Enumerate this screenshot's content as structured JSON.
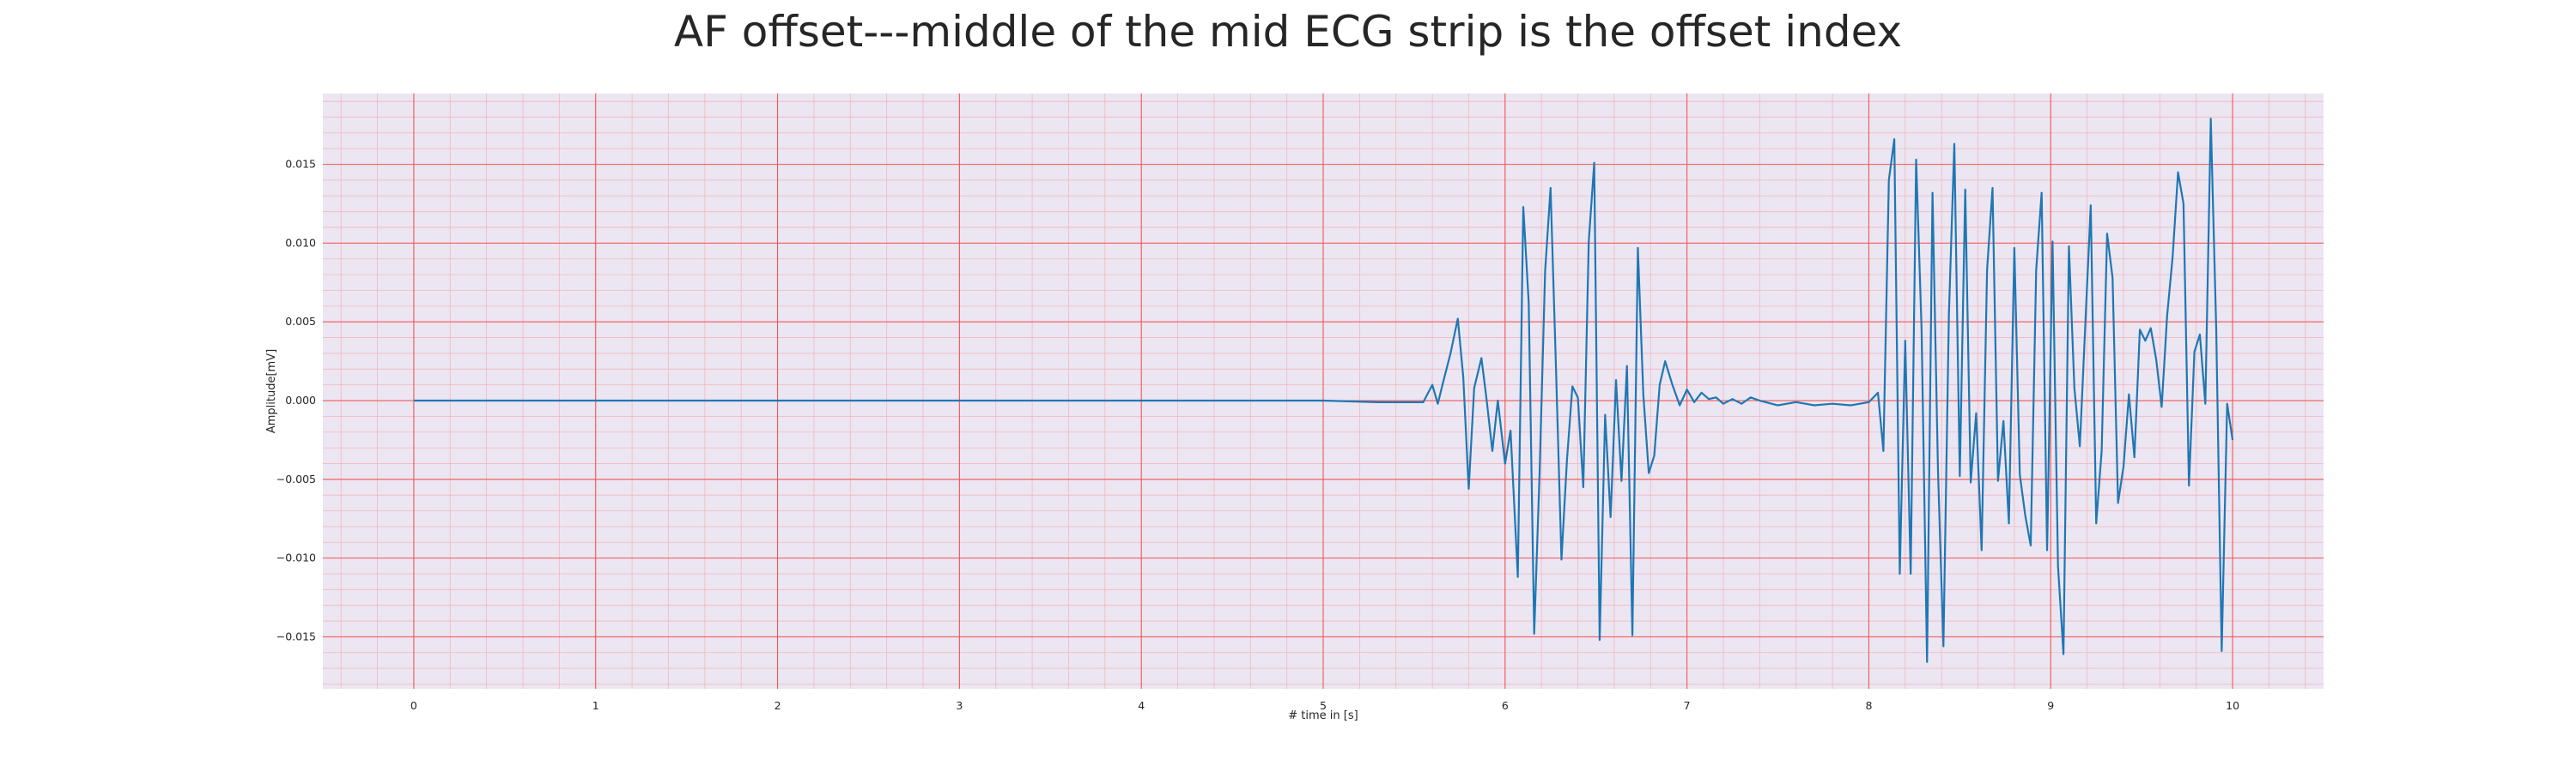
{
  "chart_data": {
    "type": "line",
    "title": "AF offset---middle of the mid ECG strip is the offset index",
    "xlabel": "# time in [s]",
    "ylabel": "Amplitude[mV]",
    "xlim": [
      -0.5,
      10.5
    ],
    "ylim": [
      -0.0183,
      0.0195
    ],
    "x_ticks": [
      0,
      1,
      2,
      3,
      4,
      5,
      6,
      7,
      8,
      9,
      10
    ],
    "y_ticks": [
      -0.015,
      -0.01,
      -0.005,
      0.0,
      0.005,
      0.01,
      0.015
    ],
    "y_tick_labels": [
      "−0.015",
      "−0.010",
      "−0.005",
      "0.000",
      "0.005",
      "0.010",
      "0.015"
    ],
    "grid": true,
    "series": [
      {
        "color": "#1f77b4",
        "x": [
          0,
          0.5,
          1,
          1.5,
          2,
          2.5,
          3,
          3.5,
          4,
          4.5,
          5,
          5.3,
          5.55,
          5.6,
          5.63,
          5.66,
          5.7,
          5.74,
          5.77,
          5.8,
          5.83,
          5.87,
          5.9,
          5.93,
          5.96,
          6.0,
          6.03,
          6.07,
          6.1,
          6.13,
          6.16,
          6.19,
          6.22,
          6.25,
          6.28,
          6.31,
          6.34,
          6.37,
          6.4,
          6.43,
          6.46,
          6.49,
          6.52,
          6.55,
          6.58,
          6.61,
          6.64,
          6.67,
          6.7,
          6.73,
          6.76,
          6.79,
          6.82,
          6.85,
          6.88,
          6.92,
          6.96,
          7.0,
          7.04,
          7.08,
          7.12,
          7.16,
          7.2,
          7.25,
          7.3,
          7.35,
          7.4,
          7.5,
          7.6,
          7.7,
          7.8,
          7.9,
          8.0,
          8.05,
          8.08,
          8.11,
          8.14,
          8.17,
          8.2,
          8.23,
          8.26,
          8.29,
          8.32,
          8.35,
          8.38,
          8.41,
          8.44,
          8.47,
          8.5,
          8.53,
          8.56,
          8.59,
          8.62,
          8.65,
          8.68,
          8.71,
          8.74,
          8.77,
          8.8,
          8.83,
          8.86,
          8.89,
          8.92,
          8.95,
          8.98,
          9.01,
          9.04,
          9.07,
          9.1,
          9.13,
          9.16,
          9.19,
          9.22,
          9.25,
          9.28,
          9.31,
          9.34,
          9.37,
          9.4,
          9.43,
          9.46,
          9.49,
          9.52,
          9.55,
          9.58,
          9.61,
          9.64,
          9.67,
          9.7,
          9.73,
          9.76,
          9.79,
          9.82,
          9.85,
          9.88,
          9.91,
          9.94,
          9.97,
          10.0
        ],
        "y": [
          0.0,
          0.0,
          0.0,
          0.0,
          0.0,
          0.0,
          0.0,
          0.0,
          0.0,
          0.0,
          0.0,
          -0.0001,
          -0.0001,
          0.001,
          -0.0002,
          0.0012,
          0.003,
          0.0052,
          0.0015,
          -0.0056,
          0.0008,
          0.0027,
          -0.0001,
          -0.0032,
          0.0,
          -0.004,
          -0.0019,
          -0.0112,
          0.0123,
          0.0062,
          -0.0148,
          -0.0045,
          0.0082,
          0.0135,
          0.002,
          -0.0101,
          -0.0038,
          0.0009,
          0.0002,
          -0.0055,
          0.0101,
          0.0151,
          -0.0152,
          -0.0009,
          -0.0074,
          0.0013,
          -0.0051,
          0.0022,
          -0.0149,
          0.0097,
          0.0004,
          -0.0046,
          -0.0035,
          0.001,
          0.0025,
          0.001,
          -0.0003,
          0.0007,
          -0.0001,
          0.0005,
          0.0001,
          0.0002,
          -0.0002,
          0.0001,
          -0.0002,
          0.0002,
          0.0,
          -0.0003,
          -0.0001,
          -0.0003,
          -0.0002,
          -0.0003,
          -0.0001,
          0.0005,
          -0.0032,
          0.014,
          0.0166,
          -0.011,
          0.0038,
          -0.011,
          0.0153,
          0.0045,
          -0.0166,
          0.0132,
          -0.0044,
          -0.0156,
          0.0054,
          0.0163,
          -0.0048,
          0.0134,
          -0.0052,
          -0.0008,
          -0.0095,
          0.0083,
          0.0135,
          -0.0051,
          -0.0013,
          -0.0078,
          0.0097,
          -0.0047,
          -0.0073,
          -0.0092,
          0.0083,
          0.0132,
          -0.0095,
          0.0101,
          -0.0105,
          -0.0161,
          0.0098,
          0.0008,
          -0.0029,
          0.0048,
          0.0124,
          -0.0078,
          -0.0032,
          0.0106,
          0.0078,
          -0.0065,
          -0.0042,
          0.0004,
          -0.0036,
          0.0045,
          0.0038,
          0.0046,
          0.0026,
          -0.0004,
          0.0054,
          0.0091,
          0.0145,
          0.0125,
          -0.0054,
          0.0031,
          0.0042,
          -0.0002,
          0.0179,
          0.0045,
          -0.0159,
          -0.0002,
          -0.0025
        ]
      }
    ]
  }
}
